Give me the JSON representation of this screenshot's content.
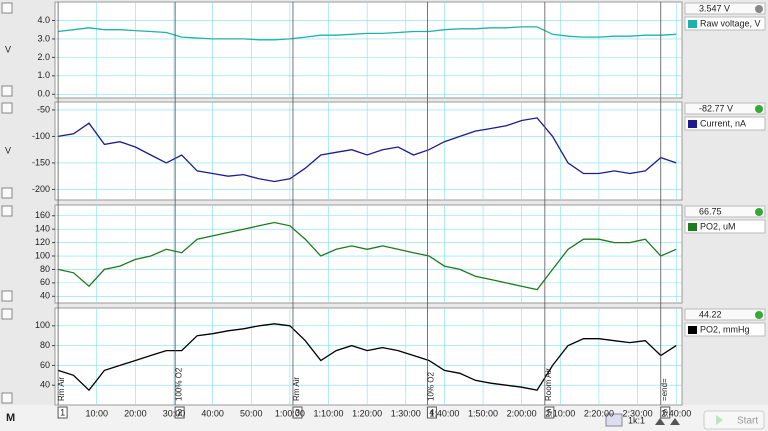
{
  "time_axis": {
    "xlim": [
      -0.8,
      161.5
    ],
    "xticks": [
      {
        "value": 10,
        "label": "10:00"
      },
      {
        "value": 20,
        "label": "20:00"
      },
      {
        "value": 30,
        "label": "30:00"
      },
      {
        "value": 40,
        "label": "40:00"
      },
      {
        "value": 50,
        "label": "50:00"
      },
      {
        "value": 60,
        "label": "1:00:00"
      },
      {
        "value": 70,
        "label": "1:10:00"
      },
      {
        "value": 80,
        "label": "1:20:00"
      },
      {
        "value": 90,
        "label": "1:30:00"
      },
      {
        "value": 100,
        "label": "1:40:00"
      },
      {
        "value": 110,
        "label": "1:50:00"
      },
      {
        "value": 120,
        "label": "2:00:00"
      },
      {
        "value": 130,
        "label": "2:10:00"
      },
      {
        "value": 140,
        "label": "2:20:00"
      },
      {
        "value": 150,
        "label": "2:30:00"
      },
      {
        "value": 160,
        "label": "2:40:00"
      }
    ],
    "sample_times": [
      0,
      4,
      8,
      12,
      16,
      20,
      24,
      28,
      32,
      36,
      40,
      44,
      48,
      52,
      56,
      60,
      64,
      68,
      72,
      76,
      80,
      84,
      88,
      92,
      96,
      100,
      104,
      108,
      112,
      116,
      120,
      124,
      128,
      132,
      136,
      140,
      144,
      148,
      152,
      156,
      160
    ]
  },
  "channels": [
    {
      "readout": "3.547 V",
      "name": "Raw voltage, V",
      "unit": "V",
      "color": "#20b2aa",
      "ylim": [
        -0.2,
        5.0
      ],
      "yticks": [
        {
          "value": 4,
          "label": "4.0"
        },
        {
          "value": 3,
          "label": "3.0"
        },
        {
          "value": 2,
          "label": "2.0"
        },
        {
          "value": 1,
          "label": "1.0"
        },
        {
          "value": 0,
          "label": "0.0"
        }
      ],
      "values": [
        3.4,
        3.5,
        3.6,
        3.5,
        3.5,
        3.45,
        3.4,
        3.35,
        3.1,
        3.05,
        3.0,
        3.0,
        3.0,
        2.95,
        2.95,
        3.0,
        3.1,
        3.2,
        3.2,
        3.25,
        3.3,
        3.3,
        3.35,
        3.4,
        3.4,
        3.5,
        3.55,
        3.55,
        3.6,
        3.6,
        3.65,
        3.65,
        3.25,
        3.15,
        3.1,
        3.1,
        3.15,
        3.15,
        3.2,
        3.2,
        3.25
      ]
    },
    {
      "readout": "-82.77 V",
      "name": "Current, nA",
      "unit": "V",
      "color": "#1c1c8e",
      "ylim": [
        -220,
        -35
      ],
      "yticks": [
        -50,
        -100,
        -150,
        -200
      ],
      "values": [
        -100,
        -95,
        -75,
        -115,
        -110,
        -120,
        -135,
        -150,
        -135,
        -165,
        -170,
        -175,
        -172,
        -180,
        -185,
        -180,
        -160,
        -135,
        -130,
        -125,
        -135,
        -125,
        -120,
        -135,
        -125,
        -110,
        -100,
        -90,
        -85,
        -80,
        -70,
        -65,
        -100,
        -150,
        -170,
        -170,
        -165,
        -170,
        -165,
        -140,
        -150
      ]
    },
    {
      "readout": "66.75",
      "name": "PO2, uM",
      "color": "#1e7a1e",
      "ylim": [
        30,
        176
      ],
      "yticks": [
        160,
        140,
        120,
        100,
        80,
        60,
        40
      ],
      "values": [
        80,
        75,
        55,
        80,
        85,
        95,
        100,
        110,
        105,
        125,
        130,
        135,
        140,
        145,
        150,
        145,
        125,
        100,
        110,
        115,
        110,
        115,
        110,
        105,
        100,
        85,
        80,
        70,
        65,
        60,
        55,
        50,
        80,
        110,
        125,
        125,
        120,
        120,
        125,
        100,
        110
      ]
    },
    {
      "readout": "44.22",
      "name": "PO2, mmHg",
      "color": "#000000",
      "ylim": [
        20,
        118
      ],
      "yticks": [
        100,
        80,
        60,
        40
      ],
      "values": [
        55,
        50,
        35,
        55,
        60,
        65,
        70,
        75,
        75,
        90,
        92,
        95,
        97,
        100,
        102,
        100,
        85,
        65,
        75,
        80,
        75,
        78,
        75,
        70,
        65,
        55,
        52,
        45,
        42,
        40,
        38,
        35,
        60,
        80,
        87,
        87,
        85,
        83,
        85,
        70,
        80
      ]
    }
  ],
  "comments": [
    {
      "t": 0,
      "text": "Rm Air",
      "marker": "1"
    },
    {
      "t": 30.3,
      "text": "100% O2",
      "marker": "2"
    },
    {
      "t": 60.8,
      "text": "Rm Air",
      "marker": "3"
    },
    {
      "t": 95.6,
      "text": "10% O2",
      "marker": "4"
    },
    {
      "t": 126,
      "text": "Room Air",
      "marker": "5"
    },
    {
      "t": 156,
      "text": "=end=",
      "marker": "6"
    }
  ],
  "controls": {
    "zoom": "1k:1",
    "start": "Start"
  }
}
